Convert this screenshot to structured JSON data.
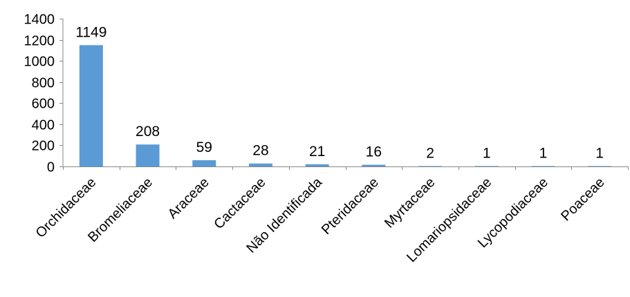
{
  "chart_data": {
    "type": "bar",
    "categories": [
      "Orchidaceae",
      "Bromeliaceae",
      "Araceae",
      "Cactaceae",
      "Não Identificada",
      "Pteridaceae",
      "Myrtaceae",
      "Lomariopsidaceae",
      "Lycopodiaceae",
      "Poaceae"
    ],
    "values": [
      1149,
      208,
      59,
      28,
      21,
      16,
      2,
      1,
      1,
      1
    ],
    "data_labels": [
      "1149",
      "208",
      "59",
      "28",
      "21",
      "16",
      "2",
      "1",
      "1",
      "1"
    ],
    "title": "",
    "xlabel": "",
    "ylabel": "",
    "ylim": [
      0,
      1400
    ],
    "yticks": [
      0,
      200,
      400,
      600,
      800,
      1000,
      1200,
      1400
    ],
    "ytick_labels": [
      "0",
      "200",
      "400",
      "600",
      "800",
      "1000",
      "1200",
      "1400"
    ],
    "grid": false,
    "legend": "none",
    "bar_color": "#5B9BD5",
    "axis_color": "#868686"
  }
}
